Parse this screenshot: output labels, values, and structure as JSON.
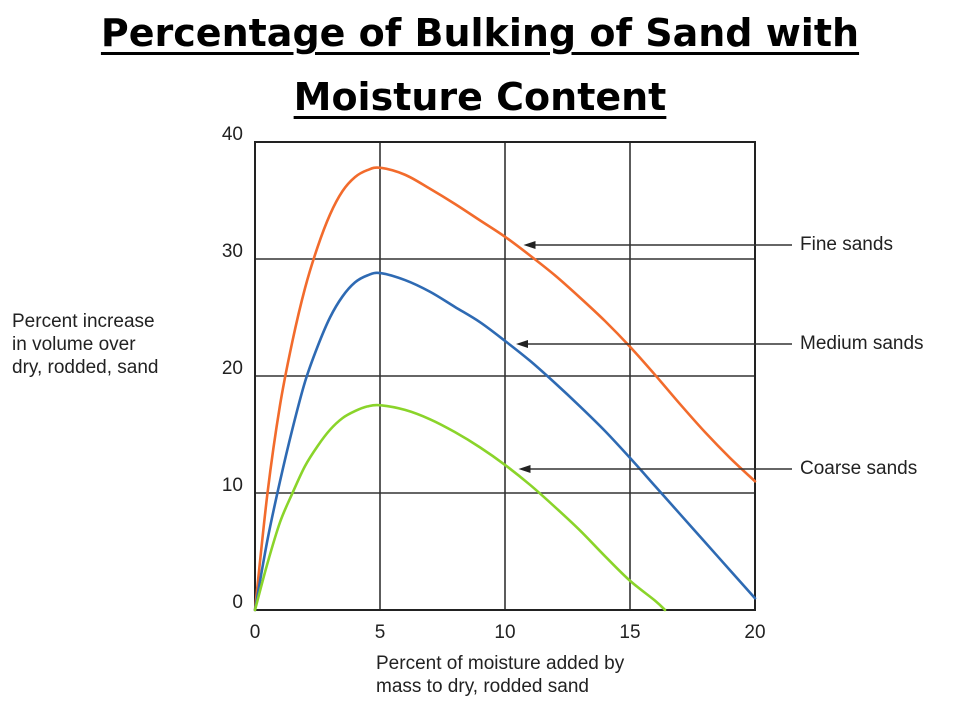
{
  "header": {
    "title_line1": "Percentage of Bulking of Sand with",
    "title_line2": "Moisture Content"
  },
  "chart_data": {
    "type": "line",
    "title": "Percentage of Bulking of Sand with Moisture Content",
    "xlabel_line1": "Percent of moisture added by",
    "xlabel_line2": "mass to dry, rodded sand",
    "ylabel_line1": "Percent increase",
    "ylabel_line2": "in volume over",
    "ylabel_line3": "dry, rodded, sand",
    "xlim": [
      0,
      20
    ],
    "ylim": [
      0,
      40
    ],
    "x_ticks": [
      0,
      5,
      10,
      15,
      20
    ],
    "y_ticks": [
      0,
      10,
      20,
      30,
      40
    ],
    "grid": true,
    "series": [
      {
        "name": "Fine sands",
        "color": "#f26b2c",
        "x": [
          0,
          0.5,
          1,
          1.5,
          2,
          2.5,
          3,
          3.5,
          4,
          4.5,
          5,
          6,
          7,
          8,
          9,
          10,
          11,
          12,
          13,
          14,
          15,
          16,
          17,
          18,
          19,
          20
        ],
        "y": [
          0,
          10,
          17.5,
          23,
          27.5,
          31,
          33.8,
          35.8,
          37,
          37.6,
          37.8,
          37.2,
          36,
          34.7,
          33.3,
          31.9,
          30.3,
          28.6,
          26.7,
          24.7,
          22.5,
          20.1,
          17.6,
          15.2,
          13,
          11
        ]
      },
      {
        "name": "Medium sands",
        "color": "#2e6ab3",
        "x": [
          0,
          0.5,
          1,
          1.5,
          2,
          2.5,
          3,
          3.5,
          4,
          4.5,
          5,
          6,
          7,
          8,
          9,
          10,
          11,
          12,
          13,
          14,
          15,
          16,
          17,
          18,
          19,
          20
        ],
        "y": [
          0,
          6,
          11,
          15.5,
          19.5,
          22.5,
          25,
          26.8,
          28,
          28.6,
          28.8,
          28.2,
          27.2,
          25.9,
          24.6,
          23,
          21.3,
          19.4,
          17.4,
          15.3,
          13,
          10.6,
          8.2,
          5.8,
          3.4,
          1
        ]
      },
      {
        "name": "Coarse sands",
        "color": "#8ad42a",
        "x": [
          0,
          0.5,
          1,
          1.5,
          2,
          2.5,
          3,
          3.5,
          4,
          4.5,
          5,
          6,
          7,
          8,
          9,
          10,
          11,
          12,
          13,
          14,
          15,
          16,
          16.4
        ],
        "y": [
          0,
          4,
          7.5,
          10,
          12.3,
          14,
          15.4,
          16.4,
          17,
          17.4,
          17.5,
          17.1,
          16.3,
          15.2,
          13.9,
          12.4,
          10.7,
          8.8,
          6.8,
          4.6,
          2.5,
          0.8,
          0
        ]
      }
    ],
    "annotations": [
      {
        "label": "Fine sands",
        "point_x": 10.5,
        "point_y": 30.8
      },
      {
        "label": "Medium sands",
        "point_x": 10.2,
        "point_y": 22.0
      },
      {
        "label": "Coarse sands",
        "point_x": 10.3,
        "point_y": 11.3
      }
    ]
  }
}
